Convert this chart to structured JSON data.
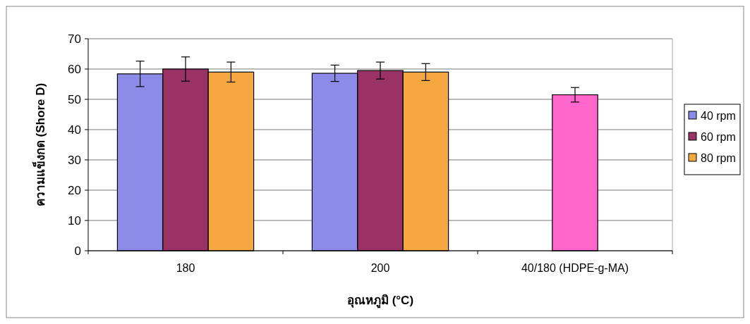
{
  "chart_data": {
    "type": "bar",
    "xlabel": "อุณหภูมิ (°C)",
    "ylabel": "ความแข็งกด (Shore D)",
    "categories": [
      "180",
      "200",
      "40/180 (HDPE-g-MA)"
    ],
    "series": [
      {
        "name": "40 rpm",
        "color": "#8c8ce8",
        "values": [
          58.4,
          58.6,
          null
        ],
        "errors": [
          4.2,
          2.7,
          null
        ]
      },
      {
        "name": "60 rpm",
        "color": "#993366",
        "colors": [
          "#993366",
          "#993366",
          "#ff66cc"
        ],
        "values": [
          60,
          59.5,
          51.5
        ],
        "errors": [
          4,
          2.8,
          2.4
        ]
      },
      {
        "name": "80 rpm",
        "color": "#f5a742",
        "values": [
          59,
          59,
          null
        ],
        "errors": [
          3.3,
          2.8,
          null
        ]
      }
    ],
    "ylim": [
      0,
      70
    ],
    "yticks": [
      0,
      10,
      20,
      30,
      40,
      50,
      60,
      70
    ],
    "grid": "y",
    "legend": "right"
  }
}
